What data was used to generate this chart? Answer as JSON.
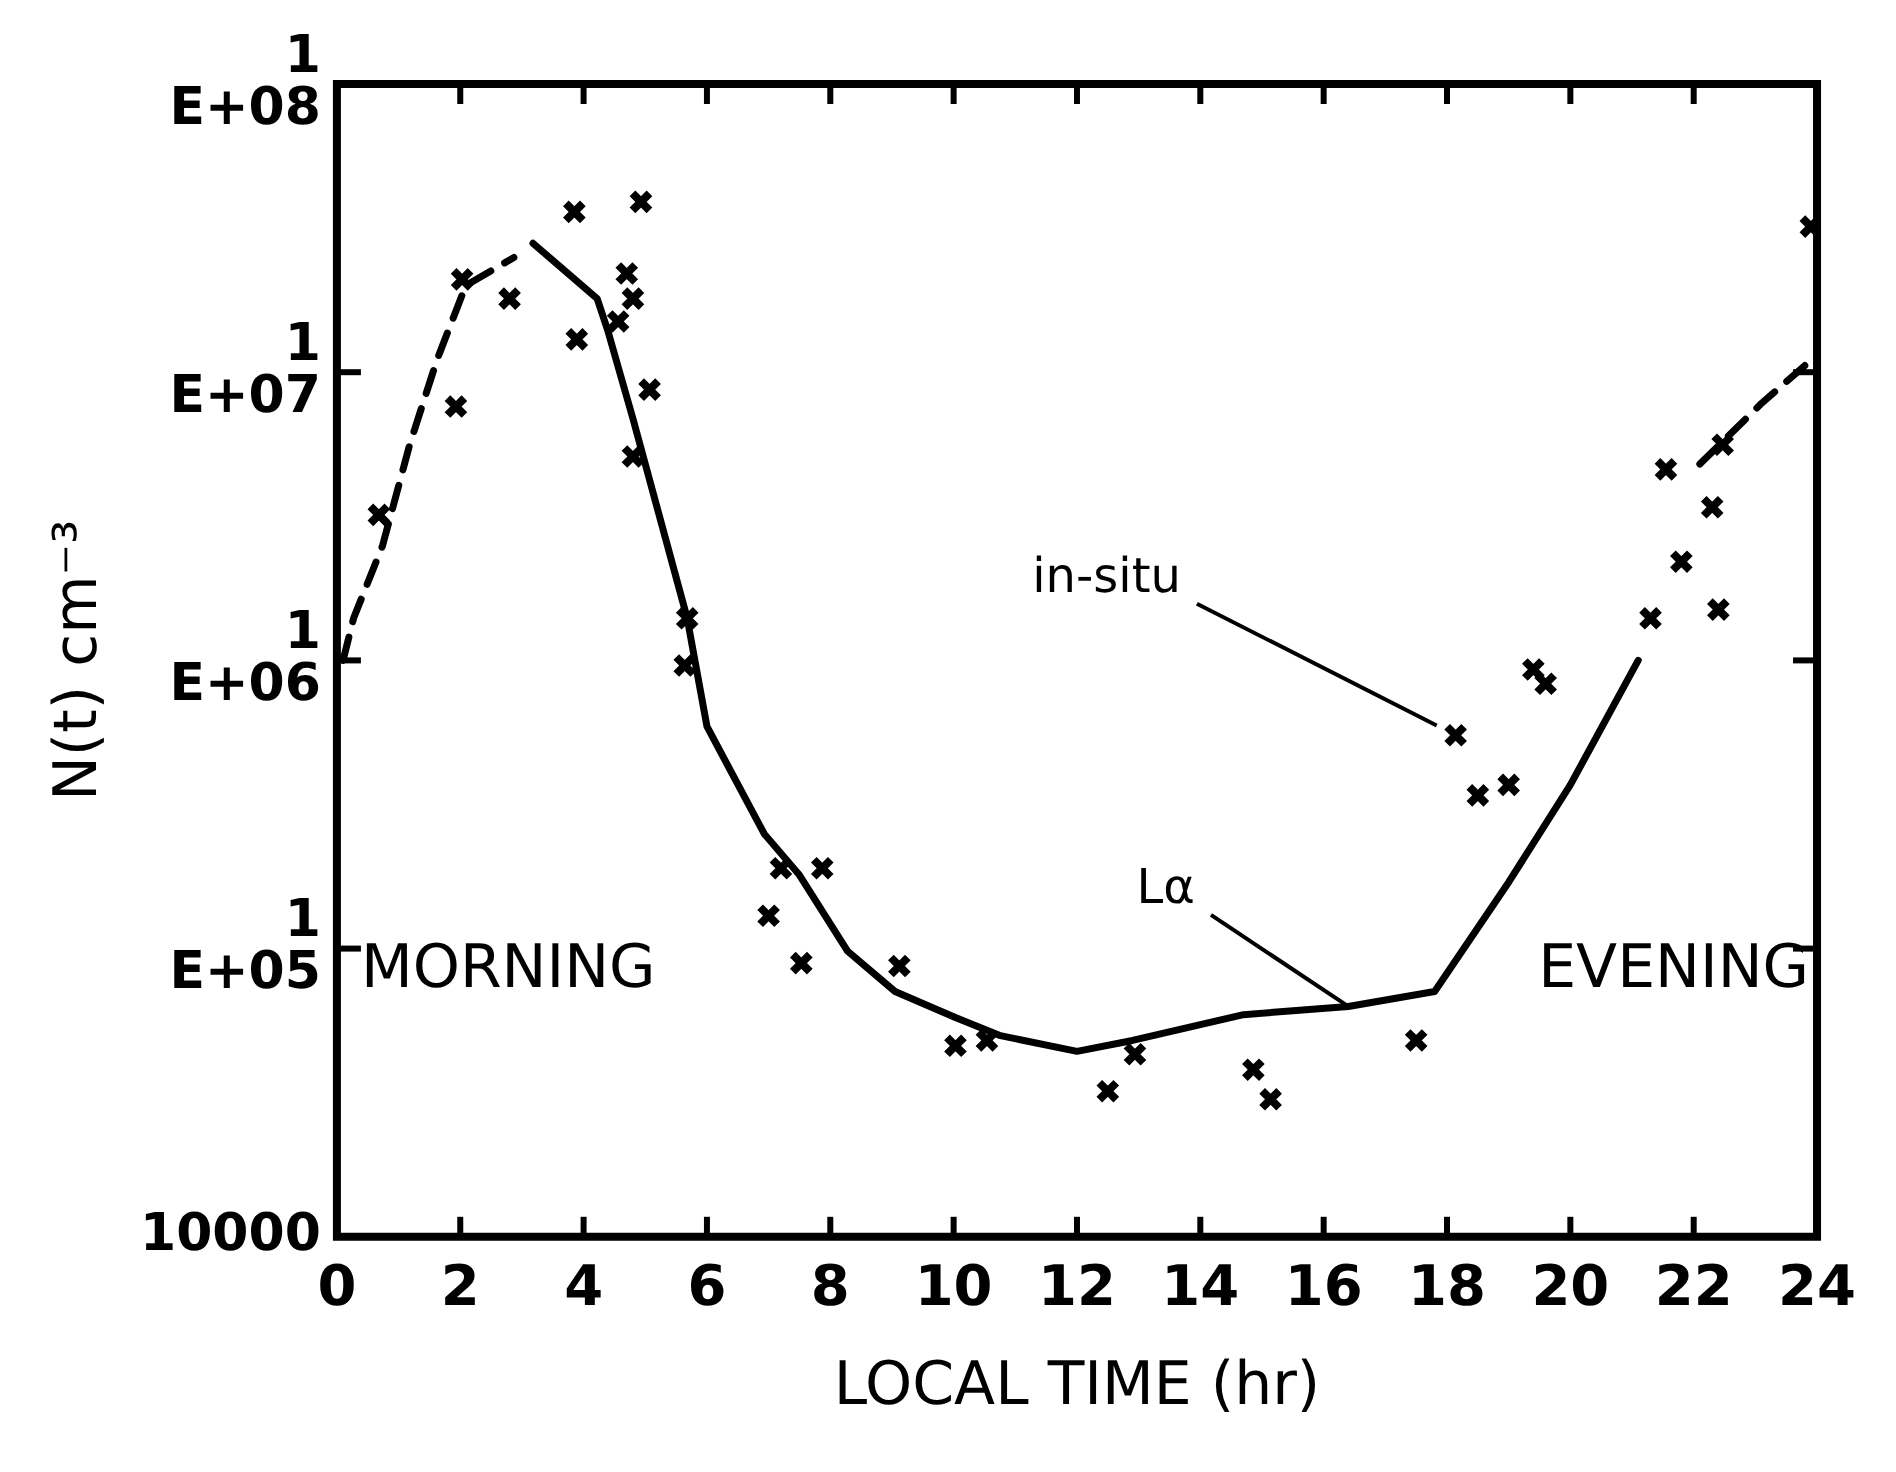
{
  "chart_data": {
    "type": "scatter",
    "xlabel": "LOCAL TIME (hr)",
    "ylabel": "N(t) cm⁻³",
    "log": "y",
    "grid": false,
    "legend": false,
    "xlim": [
      0,
      24
    ],
    "xticks": [
      0,
      2,
      4,
      6,
      8,
      10,
      12,
      14,
      16,
      18,
      20,
      22,
      24
    ],
    "ylim": [
      10000,
      100000000
    ],
    "yticks": [
      10000,
      {
        "value": 100000,
        "label": "1E+05"
      },
      {
        "value": 1000000,
        "label": "1E+06"
      },
      {
        "value": 10000000,
        "label": "1E+07"
      },
      {
        "value": 100000000,
        "label": "1E+08"
      }
    ],
    "annotations": [
      "MORNING",
      "EVENING"
    ],
    "series": [
      {
        "name": "in-situ",
        "type": "scatter",
        "marker": "cross",
        "color": "#000000",
        "x": [
          0.68,
          1.93,
          2.03,
          2.8,
          3.85,
          3.89,
          4.56,
          4.7,
          4.8,
          4.93,
          5.07,
          4.8,
          5.68,
          5.64,
          7.0,
          7.2,
          7.53,
          7.87,
          9.12,
          10.03,
          10.54,
          12.5,
          12.94,
          14.86,
          15.14,
          17.5,
          18.14,
          18.5,
          19.0,
          19.4,
          19.6,
          21.3,
          21.55,
          21.8,
          22.3,
          22.4,
          22.47,
          23.9
        ],
        "values": [
          3200000,
          7600000,
          21000000,
          18000000,
          36000000,
          13000000,
          15000000,
          22000000,
          18000000,
          39000000,
          8700000,
          5100000,
          1400000,
          960000,
          130000,
          190000,
          89000,
          190000,
          87000,
          46000,
          48000,
          32000,
          43000,
          38000,
          30000,
          48000,
          550000,
          340000,
          370000,
          930000,
          830000,
          1400000,
          4600000,
          2200000,
          3400000,
          1500000,
          5600000,
          32000000
        ]
      },
      {
        "name": "Lα",
        "type": "line",
        "marker": "none",
        "line_style": "solid",
        "color": "#000000",
        "x": [
          3.18,
          4.22,
          4.39,
          4.8,
          5.68,
          6.0,
          6.93,
          7.5,
          8.28,
          9.05,
          10.0,
          10.74,
          12.0,
          12.9,
          14.7,
          16.4,
          17.8,
          19.0,
          20.0,
          21.1
        ],
        "values": [
          28000000,
          18000000,
          14000000,
          6900000,
          1400000,
          590000,
          250000,
          180000,
          98000,
          71000,
          58000,
          50000,
          44000,
          48000,
          59000,
          63000,
          71000,
          170000,
          370000,
          1000000
        ]
      },
      {
        "type": "line",
        "marker": "none",
        "line_style": "dashed",
        "color": "#000000",
        "x": [
          0.1,
          0.27,
          0.74,
          1.18,
          1.62,
          2.09,
          2.87
        ],
        "values": [
          1000000,
          1400000,
          2500000,
          5600000,
          11000000,
          20000000,
          25000000
        ]
      },
      {
        "type": "line",
        "marker": "none",
        "line_style": "dashed",
        "color": "#000000",
        "x": [
          22.1,
          23.1,
          23.9
        ],
        "values": [
          4800000,
          7800000,
          11000000
        ]
      }
    ]
  }
}
